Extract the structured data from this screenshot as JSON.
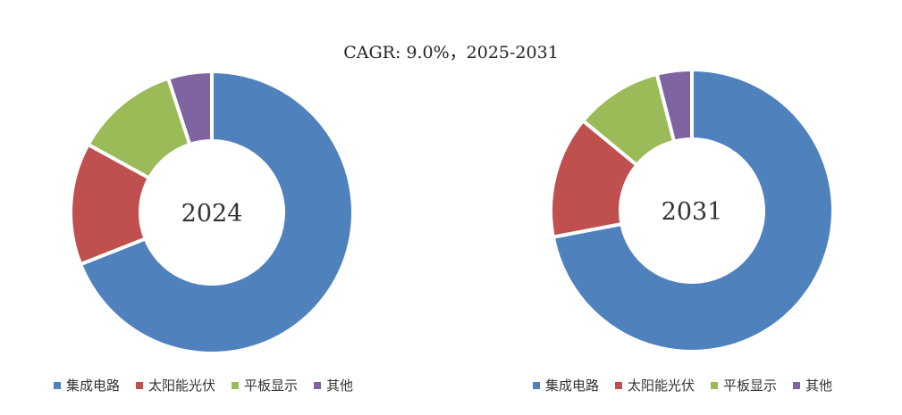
{
  "caption": "CAGR:  9.0%，2025-2031",
  "colors": {
    "集成电路": "#4f81bd",
    "太阳能光伏": "#c0504d",
    "平板显示": "#9bbb59",
    "其他": "#8064a2"
  },
  "chart_data": [
    {
      "type": "pie",
      "center_label": "2024",
      "categories": [
        "集成电路",
        "太阳能光伏",
        "平板显示",
        "其他"
      ],
      "values": [
        69,
        14,
        12,
        5
      ],
      "legend": [
        "集成电路",
        "太阳能光伏",
        "平板显示",
        "其他"
      ]
    },
    {
      "type": "pie",
      "center_label": "2031",
      "categories": [
        "集成电路",
        "太阳能光伏",
        "平板显示",
        "其他"
      ],
      "values": [
        72,
        14,
        10,
        4
      ],
      "legend": [
        "集成电路",
        "太阳能光伏",
        "平板显示",
        "其他"
      ]
    }
  ]
}
